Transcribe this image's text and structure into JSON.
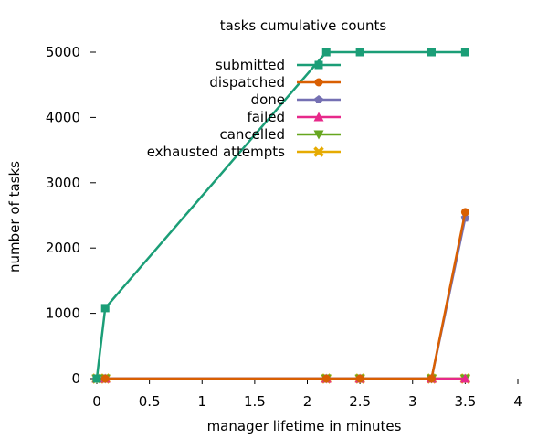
{
  "chart_data": {
    "type": "line",
    "title": "tasks cumulative counts",
    "xlabel": "manager lifetime in minutes",
    "ylabel": "number of tasks",
    "xlim": [
      0,
      4
    ],
    "ylim": [
      0,
      5000
    ],
    "xticks": [
      0,
      0.5,
      1,
      1.5,
      2,
      2.5,
      3,
      3.5,
      4
    ],
    "xtick_labels": [
      "0",
      "0.5",
      "1",
      "1.5",
      "2",
      "2.5",
      "3",
      "3.5",
      "4"
    ],
    "yticks": [
      0,
      1000,
      2000,
      3000,
      4000,
      5000
    ],
    "ytick_labels": [
      "0",
      "1000",
      "2000",
      "3000",
      "4000",
      "5000"
    ],
    "grid": false,
    "legend_position": "top-center",
    "x": [
      0,
      0.08,
      2.18,
      2.5,
      3.18,
      3.5
    ],
    "series": [
      {
        "name": "submitted",
        "color": "#1b9e77",
        "marker": "square",
        "values": [
          0,
          1080,
          5000,
          5000,
          5000,
          5000
        ]
      },
      {
        "name": "dispatched",
        "color": "#d95f02",
        "marker": "circle",
        "values": [
          0,
          0,
          0,
          0,
          0,
          2550
        ]
      },
      {
        "name": "done",
        "color": "#7570b3",
        "marker": "pentagon",
        "values": [
          0,
          0,
          0,
          0,
          0,
          2460
        ]
      },
      {
        "name": "failed",
        "color": "#e7298a",
        "marker": "triangle",
        "values": [
          0,
          0,
          0,
          0,
          0,
          0
        ]
      },
      {
        "name": "cancelled",
        "color": "#66a61e",
        "marker": "triangle-down",
        "values": [
          0,
          0,
          0,
          0,
          0,
          0
        ]
      },
      {
        "name": "exhausted attempts",
        "color": "#e6ab02",
        "marker": "x",
        "values": [
          0,
          0,
          0,
          0,
          0,
          0
        ]
      }
    ]
  }
}
